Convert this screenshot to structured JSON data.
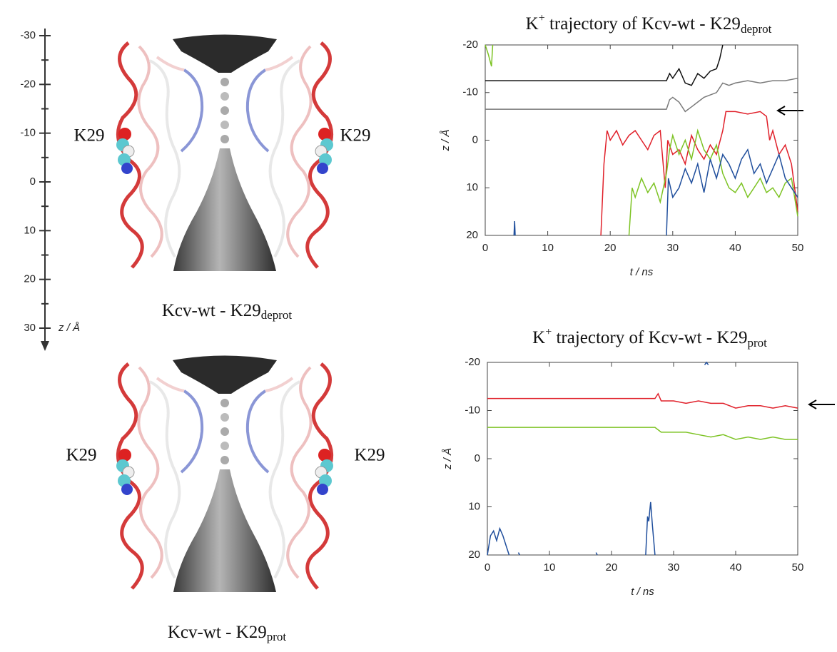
{
  "figure": {
    "labels": [
      "K29",
      "K29",
      "K29",
      "K29"
    ],
    "captions": [
      [
        "Kcv-wt - K29",
        "deprot"
      ],
      [
        "Kcv-wt - K29",
        "prot"
      ]
    ],
    "scale": {
      "ticks": [
        -30,
        -20,
        -10,
        0,
        10,
        20,
        30
      ],
      "label": "z / Å"
    }
  },
  "chart_data": [
    {
      "type": "line",
      "title": [
        "K",
        "+",
        " trajectory of Kcv-wt - K29",
        "deprot"
      ],
      "x_label": "t / ns",
      "y_label": "z / Å",
      "xlim": [
        0,
        50
      ],
      "xticks": [
        0,
        10,
        20,
        30,
        40,
        50
      ],
      "ylim": [
        20,
        -20
      ],
      "yticks": [
        -20,
        -10,
        0,
        10,
        20
      ],
      "series": [
        {
          "color": "#111111",
          "x": [
            0,
            29,
            29.5,
            30,
            31,
            32,
            33,
            34,
            35,
            36,
            37,
            37.5,
            38
          ],
          "values": [
            -12.5,
            -12.5,
            -14,
            -13,
            -15,
            -12,
            -11.5,
            -14,
            -13,
            -14.5,
            -15,
            -17,
            -20
          ]
        },
        {
          "color": "#7a7a7a",
          "x": [
            0,
            29,
            29.5,
            30,
            31,
            32,
            33,
            34,
            35,
            36,
            37,
            38,
            39,
            40,
            42,
            44,
            46,
            48,
            50
          ],
          "values": [
            -6.5,
            -6.5,
            -8.5,
            -9,
            -8,
            -6,
            -7,
            -8,
            -9,
            -9.5,
            -10,
            -12,
            -11.5,
            -12,
            -12.5,
            -12,
            -12.5,
            -12.5,
            -13
          ]
        },
        {
          "color": "#e0202a",
          "x": [
            18.5,
            19,
            19.5,
            20,
            21,
            22,
            23,
            24,
            25,
            26,
            27,
            28,
            28.8,
            29.2,
            30,
            31,
            32,
            33,
            34,
            35,
            36,
            37,
            38,
            38.5,
            40,
            42,
            44,
            45,
            45.5,
            46,
            47,
            48,
            49,
            50
          ],
          "values": [
            20,
            5,
            -2,
            0,
            -2,
            1,
            -1,
            -2,
            0,
            2,
            -1,
            -2,
            10,
            0,
            3,
            2,
            5,
            -1,
            2,
            4,
            1,
            3,
            -2,
            -6,
            -6,
            -5.5,
            -6,
            -5,
            0,
            -2,
            3,
            1,
            5,
            15
          ]
        },
        {
          "color": "#7dc324",
          "x": [
            0,
            0.5,
            1,
            1.2,
            12,
            23,
            23.5,
            24,
            25,
            26,
            27,
            28,
            29,
            29.5,
            30,
            31,
            32,
            33,
            34,
            35,
            36,
            37,
            38,
            39,
            40,
            41,
            42,
            43,
            44,
            45,
            46,
            47,
            48,
            49,
            50
          ],
          "values": [
            -20,
            -18,
            -15.5,
            -20,
            null,
            20,
            10,
            12,
            8,
            11,
            9,
            13,
            7,
            2,
            -1,
            3,
            0,
            4,
            -2,
            2,
            4,
            1,
            7,
            10,
            11,
            9,
            12,
            10,
            8,
            11,
            10,
            12,
            9,
            8,
            16
          ]
        },
        {
          "color": "#1f4e9c",
          "x": [
            4.6,
            4.7,
            4.8,
            20,
            29,
            29.3,
            30,
            31,
            32,
            33,
            34,
            35,
            36,
            37,
            38,
            39,
            40,
            41,
            42,
            43,
            44,
            45,
            46,
            47,
            48,
            49,
            50
          ],
          "values": [
            20,
            17,
            20,
            null,
            20,
            8,
            12,
            10,
            6,
            9,
            5,
            11,
            4,
            8,
            3,
            5,
            8,
            4,
            2,
            7,
            5,
            9,
            6,
            3,
            8,
            10,
            12
          ]
        }
      ]
    },
    {
      "type": "line",
      "title": [
        "K",
        "+",
        " trajectory of Kcv-wt - K29",
        "prot"
      ],
      "x_label": "t / ns",
      "y_label": "z / Å",
      "xlim": [
        0,
        50
      ],
      "xticks": [
        0,
        10,
        20,
        30,
        40,
        50
      ],
      "ylim": [
        20,
        -20
      ],
      "yticks": [
        -20,
        -10,
        0,
        10,
        20
      ],
      "series": [
        {
          "color": "#e0202a",
          "x": [
            0,
            27,
            27.5,
            28,
            30,
            32,
            34,
            36,
            38,
            40,
            42,
            44,
            46,
            48,
            50
          ],
          "values": [
            -12.5,
            -12.5,
            -13.5,
            -12,
            -12,
            -11.5,
            -12,
            -11.5,
            -11.5,
            -10.5,
            -11,
            -11,
            -10.5,
            -11,
            -10.5
          ]
        },
        {
          "color": "#7dc324",
          "x": [
            0,
            27,
            27.5,
            28,
            30,
            32,
            34,
            36,
            38,
            40,
            42,
            44,
            46,
            48,
            50
          ],
          "values": [
            -6.5,
            -6.5,
            -6,
            -5.5,
            -5.5,
            -5.5,
            -5,
            -4.5,
            -5,
            -4,
            -4.5,
            -4,
            -4.5,
            -4,
            -4
          ]
        },
        {
          "color": "#1f4e9c",
          "x": [
            0,
            0.5,
            1,
            1.5,
            2,
            2.5,
            3,
            3.5,
            4,
            5,
            5.2,
            11,
            17.5,
            17.7,
            21,
            25.5,
            25.8,
            26,
            26.3,
            26.6,
            27,
            30,
            35,
            35.3,
            35.6
          ],
          "values": [
            20,
            16,
            15,
            17,
            14.5,
            16,
            18,
            20,
            null,
            19.5,
            20,
            null,
            19.5,
            20,
            null,
            20,
            12,
            13,
            9,
            14,
            20,
            null,
            -19.5,
            -20,
            -19.5
          ]
        }
      ]
    }
  ]
}
